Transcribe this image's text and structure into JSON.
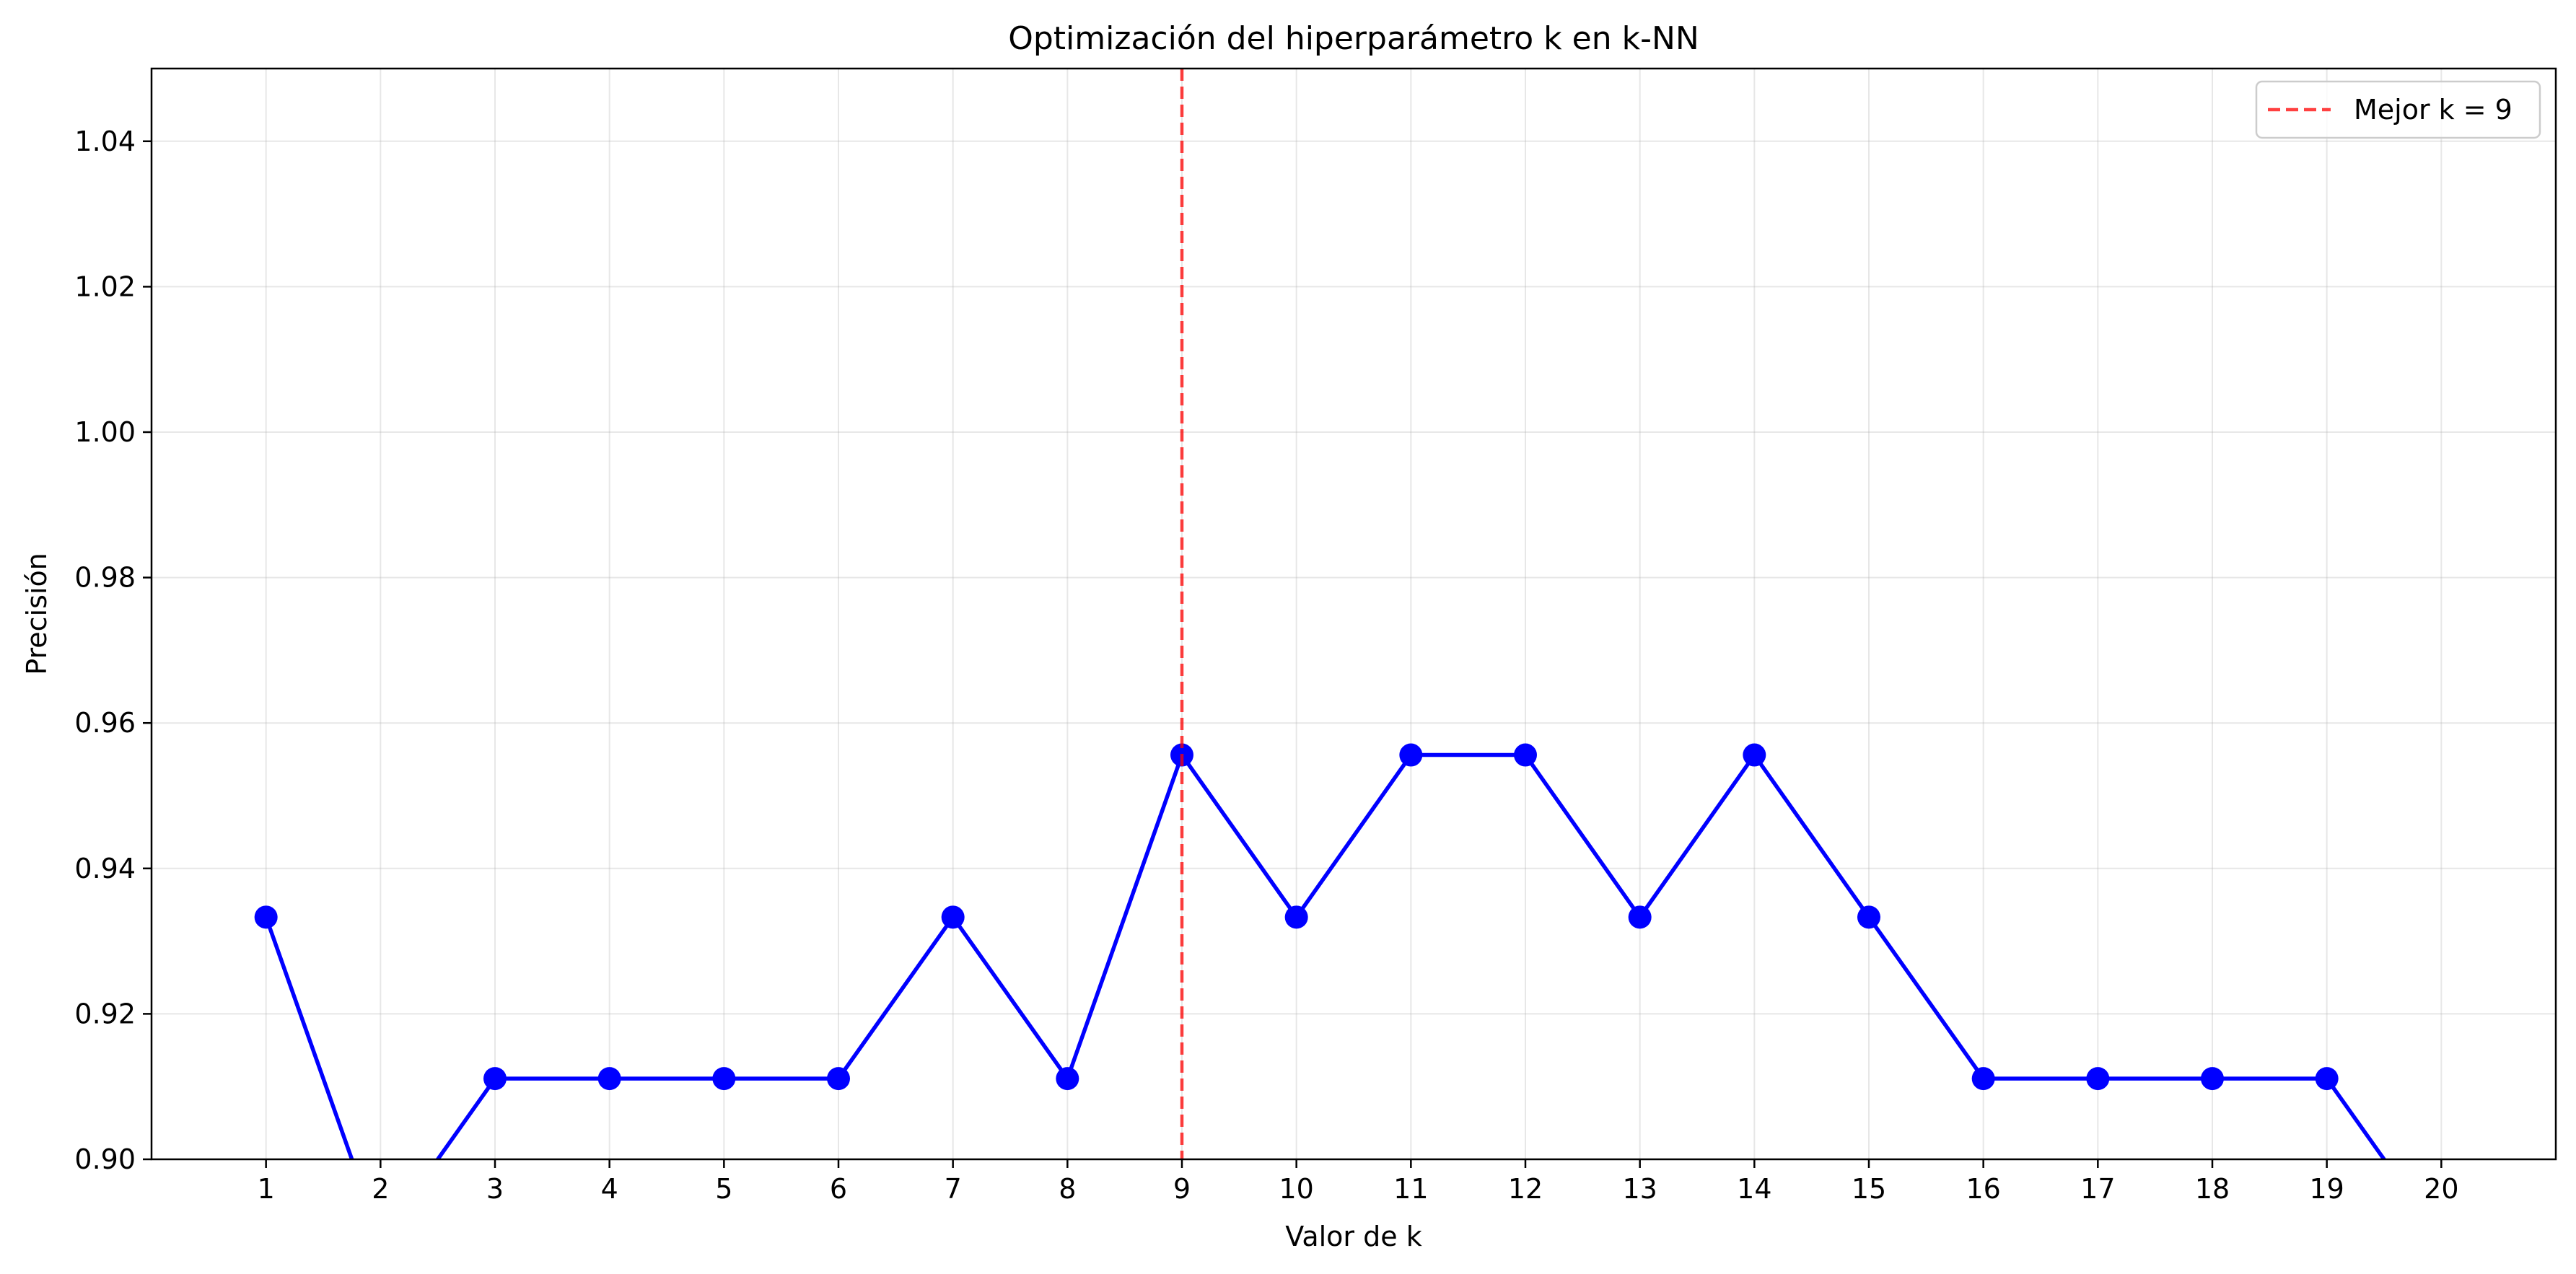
{
  "chart_data": {
    "type": "line",
    "title": "Optimización del hiperparámetro k en k-NN",
    "xlabel": "Valor de k",
    "ylabel": "Precisión",
    "xlim": [
      0,
      21
    ],
    "ylim": [
      0.9,
      1.05
    ],
    "x_ticks": [
      1,
      2,
      3,
      4,
      5,
      6,
      7,
      8,
      9,
      10,
      11,
      12,
      13,
      14,
      15,
      16,
      17,
      18,
      19,
      20
    ],
    "y_ticks": [
      "0.90",
      "0.92",
      "0.94",
      "0.96",
      "0.98",
      "1.00",
      "1.02",
      "1.04"
    ],
    "grid": true,
    "legend_position": "top-right",
    "series": [
      {
        "color": "#0000ff",
        "x": [
          1,
          2,
          3,
          4,
          5,
          6,
          7,
          8,
          9,
          10,
          11,
          12,
          13,
          14,
          15,
          16,
          17,
          18,
          19,
          20
        ],
        "y": [
          0.9333,
          0.8889,
          0.9111,
          0.9111,
          0.9111,
          0.9111,
          0.9333,
          0.9111,
          0.9556,
          0.9333,
          0.9556,
          0.9556,
          0.9333,
          0.9556,
          0.9333,
          0.9111,
          0.9111,
          0.9111,
          0.9111,
          0.8889
        ]
      }
    ],
    "reference_line": {
      "x": 9,
      "label": "Mejor k = 9",
      "color": "#ff0000",
      "style": "dashed"
    }
  }
}
